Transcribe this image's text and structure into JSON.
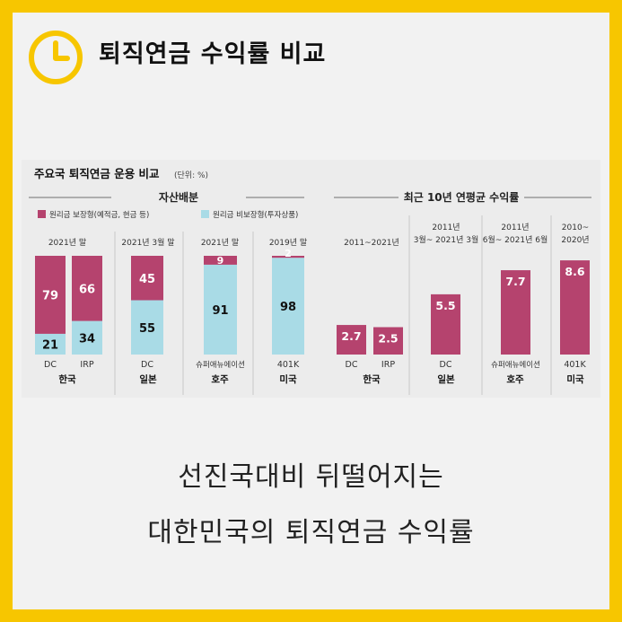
{
  "header": {
    "title": "퇴직연금 수익률 비교"
  },
  "panel": {
    "title": "주요국 퇴직연금 운용 비교",
    "unit": "(단위: %)",
    "left_section_title": "자산배분",
    "right_section_title": "최근 10년 연평균 수익률",
    "legend": [
      {
        "label": "원리금 보장형(예적금, 현금 등)",
        "color": "#b5436e"
      },
      {
        "label": "원리금 비보장형(투자상품)",
        "color": "#a9dbe6"
      }
    ]
  },
  "chart_data": [
    {
      "type": "bar",
      "stacked": true,
      "title": "자산배분",
      "unit": "%",
      "categories": [
        "DC",
        "IRP",
        "DC",
        "슈퍼애뉴에이션",
        "401K"
      ],
      "groups": [
        {
          "country": "한국",
          "period": "2021년 말",
          "categories": [
            "DC",
            "IRP"
          ]
        },
        {
          "country": "일본",
          "period": "2021년 3월 말",
          "categories": [
            "DC"
          ]
        },
        {
          "country": "호주",
          "period": "2021년 말",
          "categories": [
            "슈퍼애뉴에이션"
          ]
        },
        {
          "country": "미국",
          "period": "2019년 말",
          "categories": [
            "401K"
          ]
        }
      ],
      "series": [
        {
          "name": "원리금 보장형(예적금, 현금 등)",
          "color": "#b5436e",
          "values": [
            79,
            66,
            45,
            9,
            2
          ]
        },
        {
          "name": "원리금 비보장형(투자상품)",
          "color": "#a9dbe6",
          "values": [
            21,
            34,
            55,
            91,
            98
          ]
        }
      ],
      "ylim": [
        0,
        100
      ]
    },
    {
      "type": "bar",
      "title": "최근 10년 연평균 수익률",
      "unit": "%",
      "categories": [
        "DC",
        "IRP",
        "DC",
        "슈퍼애뉴에이션",
        "401K"
      ],
      "groups": [
        {
          "country": "한국",
          "period": "2011~2021년",
          "categories": [
            "DC",
            "IRP"
          ]
        },
        {
          "country": "일본",
          "period": "2011년 3월~ 2021년 3월",
          "categories": [
            "DC"
          ]
        },
        {
          "country": "호주",
          "period": "2011년 6월~ 2021년 6월",
          "categories": [
            "슈퍼애뉴에이션"
          ]
        },
        {
          "country": "미국",
          "period": "2010~ 2020년",
          "categories": [
            "401K"
          ]
        }
      ],
      "series": [
        {
          "name": "",
          "color": "#b5436e",
          "values": [
            2.7,
            2.5,
            5.5,
            7.7,
            8.6
          ]
        }
      ],
      "ylim": [
        0,
        9
      ]
    }
  ],
  "caption": {
    "line1": "선진국대비 뒤떨어지는",
    "line2": "대한민국의 퇴직연금 수익률"
  },
  "colors": {
    "frame": "#f7c600",
    "guaranteed": "#b5436e",
    "non_guaranteed": "#a9dbe6"
  }
}
